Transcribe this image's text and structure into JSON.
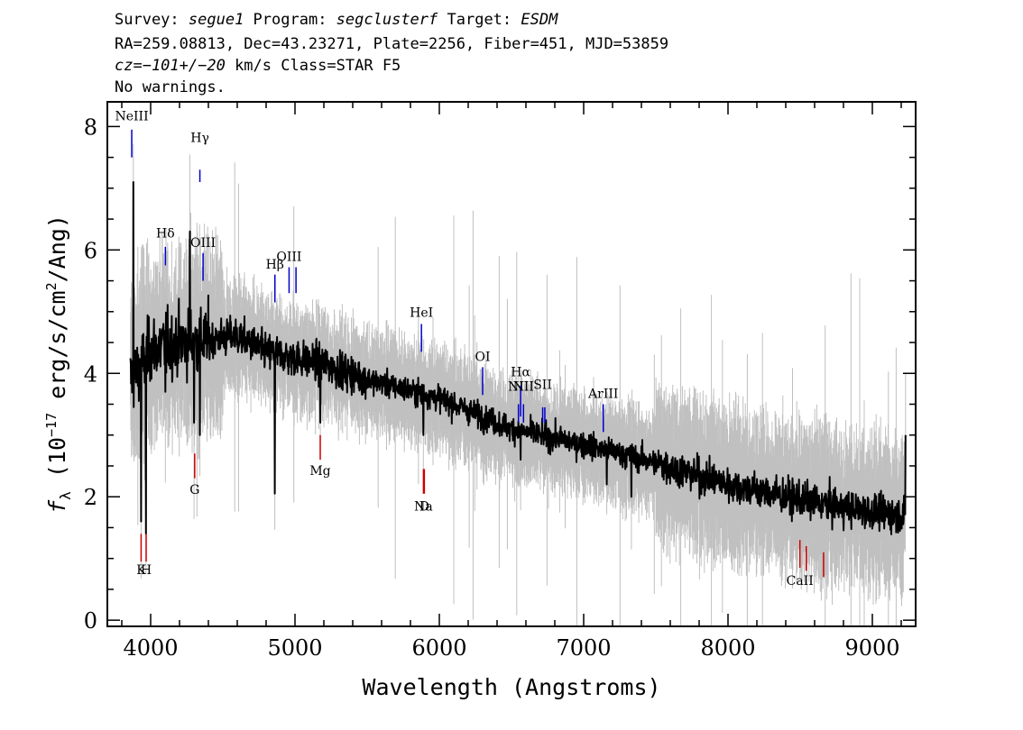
{
  "header": {
    "line1": [
      {
        "text": "Survey: ",
        "italic": false
      },
      {
        "text": "segue1",
        "italic": true
      },
      {
        "text": " Program: ",
        "italic": false
      },
      {
        "text": "segclusterf",
        "italic": true
      },
      {
        "text": " Target: ",
        "italic": false
      },
      {
        "text": "ESDM",
        "italic": true
      }
    ],
    "line2": "RA=259.08813, Dec=43.23271, Plate=2256, Fiber=451, MJD=53859",
    "line3": [
      {
        "text": "cz=−101+/−20",
        "italic": true
      },
      {
        "text": " km/s Class=STAR F5",
        "italic": false
      }
    ],
    "line4": "No warnings."
  },
  "colors": {
    "flux": "#000000",
    "error": "#c0c0c0",
    "emission": "#0000cc",
    "absorption": "#cc0000"
  },
  "chart_data": {
    "type": "line",
    "xlabel": "Wavelength (Angstroms)",
    "ylabel_prefix": "f",
    "ylabel_sub": "λ",
    "ylabel_unit_open": " (10",
    "ylabel_exp": "−17",
    "ylabel_unit_mid": " erg/s/cm",
    "ylabel_exp2": "2",
    "ylabel_unit_close": "/Ang)",
    "xlim": [
      3700,
      9300
    ],
    "ylim": [
      -0.1,
      8.4
    ],
    "xticks": [
      4000,
      5000,
      6000,
      7000,
      8000,
      9000
    ],
    "xtick_labels": [
      "4000",
      "5000",
      "6000",
      "7000",
      "8000",
      "9000"
    ],
    "yticks": [
      0,
      2,
      4,
      6,
      8
    ],
    "ytick_labels": [
      "0",
      "2",
      "4",
      "6",
      "8"
    ],
    "spectrum_range": [
      3860,
      9230
    ],
    "flux_continuum": [
      [
        3860,
        3.9
      ],
      [
        3900,
        4.0
      ],
      [
        4000,
        4.4
      ],
      [
        4200,
        4.5
      ],
      [
        4400,
        4.55
      ],
      [
        4600,
        4.6
      ],
      [
        4800,
        4.35
      ],
      [
        5000,
        4.25
      ],
      [
        5200,
        4.15
      ],
      [
        5500,
        3.9
      ],
      [
        6000,
        3.6
      ],
      [
        6500,
        3.1
      ],
      [
        7000,
        2.85
      ],
      [
        7500,
        2.55
      ],
      [
        8000,
        2.2
      ],
      [
        8500,
        1.95
      ],
      [
        9000,
        1.75
      ],
      [
        9230,
        1.7
      ]
    ],
    "flux_features": [
      [
        3880,
        7.1
      ],
      [
        3934,
        1.6
      ],
      [
        3968,
        1.4
      ],
      [
        4102,
        3.7
      ],
      [
        4271,
        6.3
      ],
      [
        4300,
        3.2
      ],
      [
        4340,
        3.0
      ],
      [
        4861,
        2.05
      ],
      [
        5175,
        3.2
      ],
      [
        5890,
        3.0
      ],
      [
        6563,
        2.6
      ],
      [
        7160,
        2.2
      ],
      [
        7330,
        2.0
      ],
      [
        9230,
        3.0
      ]
    ],
    "emission_lines": [
      {
        "label": "NeIII",
        "wave": 3869,
        "y_top": 7.95,
        "y_bot": 7.5,
        "label_y": 8.1
      },
      {
        "label": "Hγ",
        "wave": 4341,
        "y_top": 7.3,
        "y_bot": 7.1,
        "label_y": 7.75
      },
      {
        "label": "Hδ",
        "wave": 4102,
        "y_top": 6.05,
        "y_bot": 5.75,
        "label_y": 6.2
      },
      {
        "label": "OIII",
        "wave": 4363,
        "y_top": 5.95,
        "y_bot": 5.5,
        "label_y": 6.05
      },
      {
        "label": "Hβ",
        "wave": 4861,
        "y_top": 5.6,
        "y_bot": 5.15,
        "label_y": 5.7
      },
      {
        "label": "OIII",
        "wave": 4959,
        "y_top": 5.72,
        "y_bot": 5.3,
        "label_y": 5.82
      },
      {
        "label": "",
        "wave": 5007,
        "y_top": 5.72,
        "y_bot": 5.3,
        "label_y": 5.82
      },
      {
        "label": "HeI",
        "wave": 5876,
        "y_top": 4.8,
        "y_bot": 4.35,
        "label_y": 4.92
      },
      {
        "label": "OI",
        "wave": 6300,
        "y_top": 4.1,
        "y_bot": 3.65,
        "label_y": 4.2
      },
      {
        "label": "NII",
        "wave": 6548,
        "y_top": 3.5,
        "y_bot": 3.2,
        "label_y": 3.72
      },
      {
        "label": "Hα",
        "wave": 6563,
        "y_top": 3.8,
        "y_bot": 3.3,
        "label_y": 3.95
      },
      {
        "label": "NII",
        "wave": 6583,
        "y_top": 3.5,
        "y_bot": 3.2,
        "label_y": 3.72
      },
      {
        "label": "SII",
        "wave": 6716,
        "y_top": 3.45,
        "y_bot": 3.2,
        "label_y": 3.75
      },
      {
        "label": "",
        "wave": 6731,
        "y_top": 3.45,
        "y_bot": 3.2,
        "label_y": 3.75
      },
      {
        "label": "ArIII",
        "wave": 7136,
        "y_top": 3.5,
        "y_bot": 3.05,
        "label_y": 3.6
      }
    ],
    "absorption_lines": [
      {
        "label": "K",
        "wave": 3934,
        "y_top": 1.4,
        "y_bot": 0.95,
        "label_y": 0.75
      },
      {
        "label": "H",
        "wave": 3969,
        "y_top": 1.4,
        "y_bot": 0.95,
        "label_y": 0.75
      },
      {
        "label": "G",
        "wave": 4305,
        "y_top": 2.7,
        "y_bot": 2.3,
        "label_y": 2.05
      },
      {
        "label": "Mg",
        "wave": 5175,
        "y_top": 3.0,
        "y_bot": 2.6,
        "label_y": 2.35
      },
      {
        "label": "Na",
        "wave": 5890,
        "y_top": 2.45,
        "y_bot": 2.05,
        "label_y": 1.78
      },
      {
        "label": "D",
        "wave": 5896,
        "y_top": 2.45,
        "y_bot": 2.05,
        "label_y": 1.78
      },
      {
        "label": "CaII",
        "wave": 8498,
        "y_top": 1.3,
        "y_bot": 0.85,
        "label_y": 0.57
      },
      {
        "label": "",
        "wave": 8542,
        "y_top": 1.2,
        "y_bot": 0.8,
        "label_y": 0.57
      },
      {
        "label": "",
        "wave": 8662,
        "y_top": 1.1,
        "y_bot": 0.7,
        "label_y": 0.57
      }
    ]
  }
}
